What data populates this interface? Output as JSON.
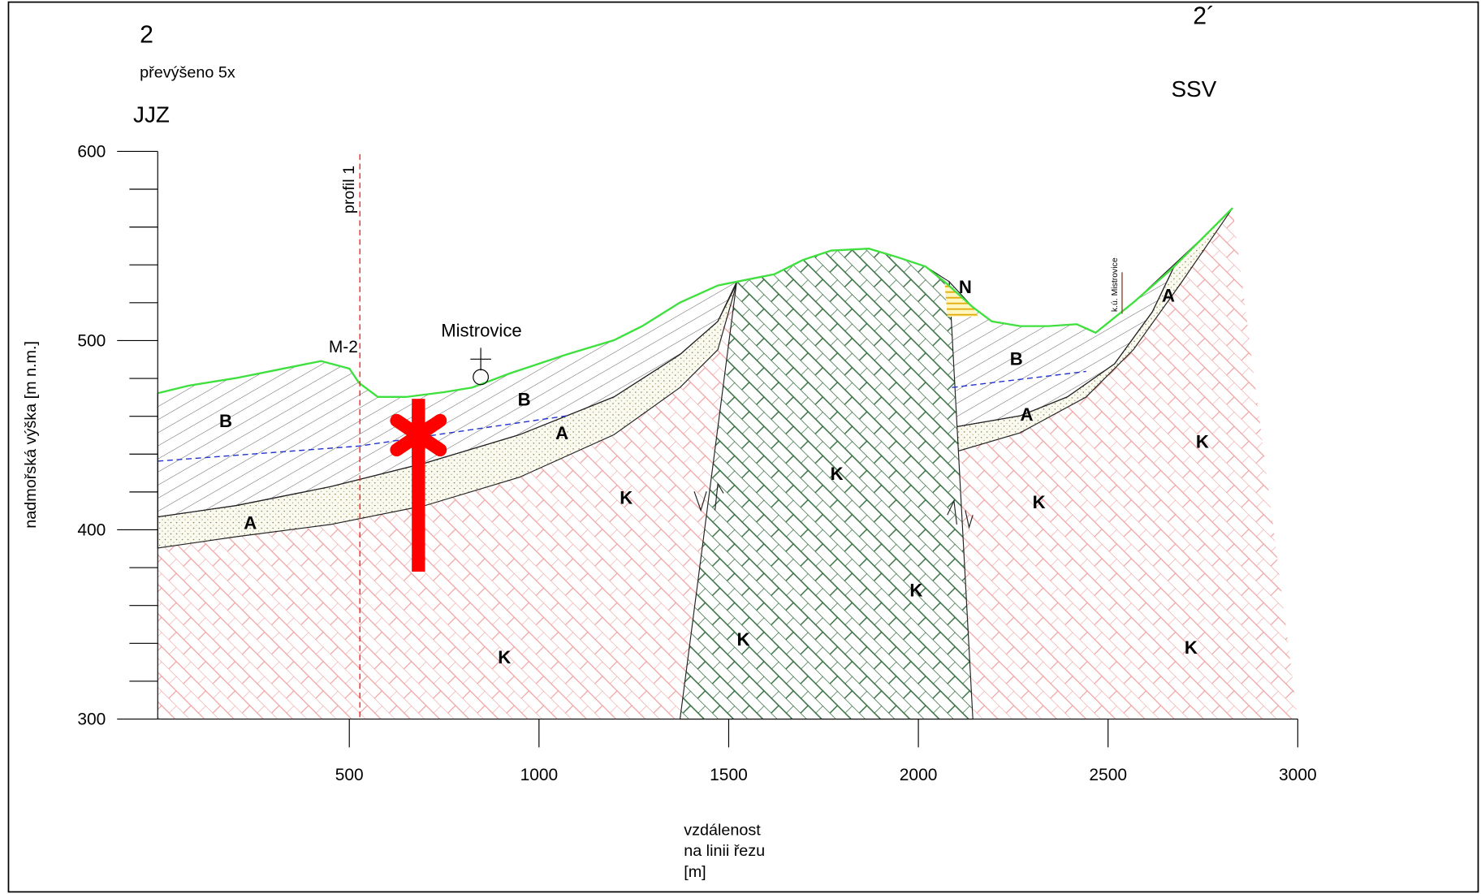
{
  "header": {
    "profile_start": "2",
    "profile_end": "2´",
    "exaggeration": "převýšeno 5x",
    "direction_left": "JJZ",
    "direction_right": "SSV"
  },
  "axes": {
    "y_label": "nadmořská výška [m n.m.]",
    "x_label": [
      "vzdálenost",
      "na linii řezu",
      "[m]"
    ],
    "xlim": [
      0,
      3000
    ],
    "ylim": [
      300,
      600
    ],
    "xticks": [
      500,
      1000,
      1500,
      2000,
      2500,
      3000
    ],
    "yticks": [
      300,
      400,
      500,
      600
    ],
    "yminorticks": [
      320,
      340,
      360,
      380,
      420,
      440,
      460,
      480,
      520,
      540,
      560,
      580
    ]
  },
  "places": [
    "Mistrovice",
    "M-2",
    "profil 1",
    "k.ú. Mistrovice"
  ],
  "units": [
    "B",
    "B",
    "B",
    "A",
    "A",
    "A",
    "A",
    "K",
    "K",
    "K",
    "K",
    "K",
    "K",
    "K",
    "K",
    "N"
  ]
}
